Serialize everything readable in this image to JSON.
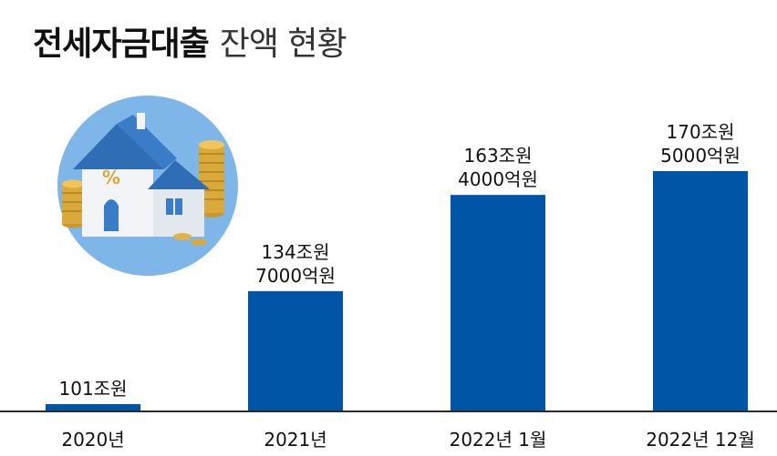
{
  "title": {
    "bold": "전세자금대출",
    "light": "잔액 현황"
  },
  "colors": {
    "bar": "#0055A6",
    "text": "#111111",
    "axis": "#2b2b2b",
    "circle": "#7FB6EA"
  },
  "illustration": {
    "icon": "house-with-coins-icon",
    "symbol": "%"
  },
  "chart_data": {
    "type": "bar",
    "categories": [
      "2020년",
      "2021년",
      "2022년 1월",
      "2022년 12월"
    ],
    "values": [
      101,
      134.7,
      163.4,
      170.5
    ],
    "unit": "조원",
    "data_labels": [
      [
        "101조원"
      ],
      [
        "134조원",
        "7000억원"
      ],
      [
        "163조원",
        "4000억원"
      ],
      [
        "170조원",
        "5000억원"
      ]
    ],
    "title": "전세자금대출 잔액 현황",
    "xlabel": "",
    "ylabel": "",
    "grid": false,
    "legend": "none"
  }
}
